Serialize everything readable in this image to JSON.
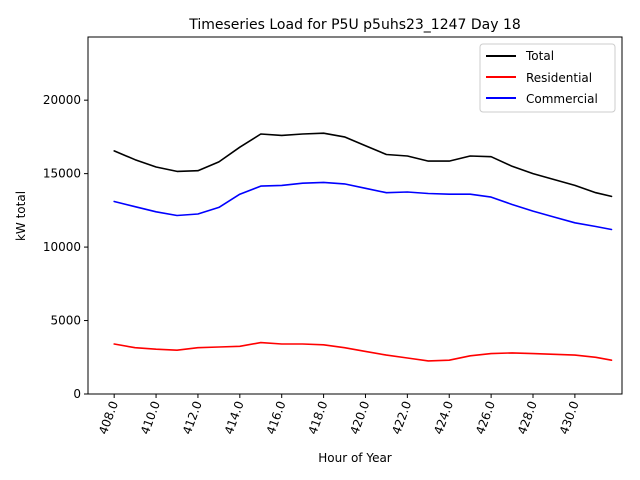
{
  "chart_data": {
    "type": "line",
    "title": "Timeseries Load for P5U p5uhs23_1247  Day 18",
    "xlabel": "Hour of Year",
    "ylabel": "kW total",
    "xlim": [
      406.75,
      432.25
    ],
    "ylim": [
      0,
      24300
    ],
    "xticks": [
      408,
      410,
      412,
      414,
      416,
      418,
      420,
      422,
      424,
      426,
      428,
      430
    ],
    "xtick_labels": [
      "408.0",
      "410.0",
      "412.0",
      "414.0",
      "416.0",
      "418.0",
      "420.0",
      "422.0",
      "424.0",
      "426.0",
      "428.0",
      "430.0"
    ],
    "yticks": [
      0,
      5000,
      10000,
      15000,
      20000
    ],
    "ytick_labels": [
      "0",
      "5000",
      "10000",
      "15000",
      "20000"
    ],
    "legend_position": "top-right",
    "x": [
      408,
      409,
      410,
      411,
      412,
      413,
      414,
      415,
      416,
      417,
      418,
      419,
      420,
      421,
      422,
      423,
      424,
      425,
      426,
      427,
      428,
      429,
      430,
      431,
      431.75
    ],
    "series": [
      {
        "name": "Total",
        "color": "#000000",
        "values": [
          16550,
          15950,
          15450,
          15150,
          15200,
          15800,
          16800,
          17700,
          17600,
          17700,
          17750,
          17500,
          16900,
          16300,
          16200,
          15850,
          15850,
          16200,
          16150,
          15500,
          15000,
          14600,
          14200,
          13700,
          13450
        ]
      },
      {
        "name": "Residential",
        "color": "#ff0000",
        "values": [
          3400,
          3150,
          3050,
          2980,
          3150,
          3200,
          3250,
          3500,
          3400,
          3400,
          3350,
          3150,
          2900,
          2650,
          2450,
          2250,
          2300,
          2600,
          2750,
          2800,
          2750,
          2700,
          2650,
          2500,
          2300
        ]
      },
      {
        "name": "Commercial",
        "color": "#0000ff",
        "values": [
          13100,
          12750,
          12400,
          12150,
          12250,
          12700,
          13600,
          14150,
          14200,
          14350,
          14400,
          14300,
          14000,
          13700,
          13750,
          13650,
          13600,
          13600,
          13400,
          12900,
          12450,
          12050,
          11650,
          11400,
          11200
        ]
      }
    ]
  }
}
